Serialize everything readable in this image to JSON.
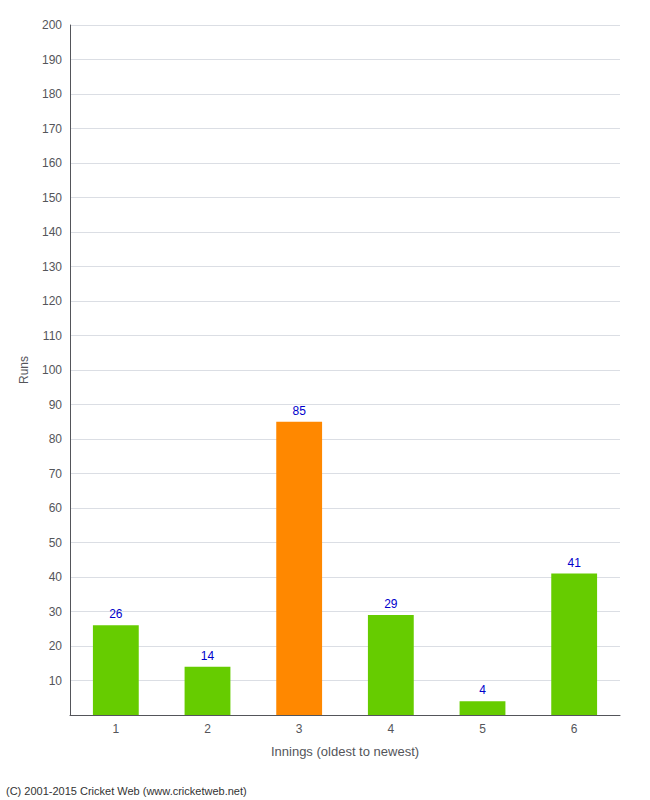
{
  "chart_data": {
    "type": "bar",
    "categories": [
      "1",
      "2",
      "3",
      "4",
      "5",
      "6"
    ],
    "values": [
      26,
      14,
      85,
      29,
      4,
      41
    ],
    "colors": [
      "#66cc00",
      "#66cc00",
      "#ff8800",
      "#66cc00",
      "#66cc00",
      "#66cc00"
    ],
    "xlabel": "Innings (oldest to newest)",
    "ylabel": "Runs",
    "ylim": [
      0,
      200
    ],
    "yticks": [
      10,
      20,
      30,
      40,
      50,
      60,
      70,
      80,
      90,
      100,
      110,
      120,
      130,
      140,
      150,
      160,
      170,
      180,
      190,
      200
    ],
    "grid": true,
    "data_labels": true,
    "annotations": [
      "(C) 2001-2015 Cricket Web (www.cricketweb.net)"
    ]
  }
}
